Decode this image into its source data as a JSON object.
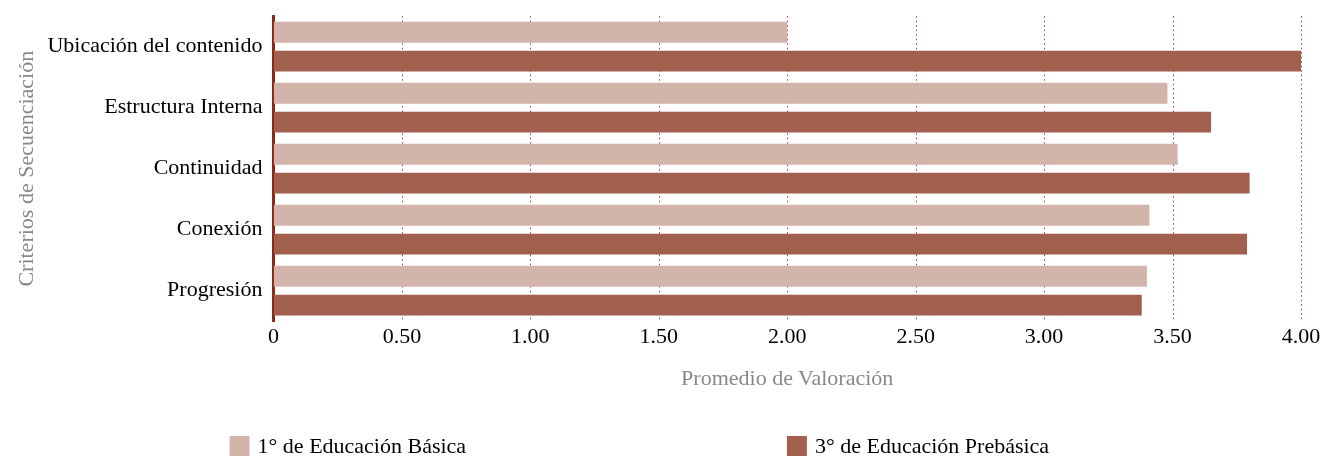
{
  "chart_data": {
    "type": "bar",
    "orientation": "horizontal",
    "ylabel": "Criterios de Secuenciación",
    "xlabel": "Promedio de Valoración",
    "categories": [
      "Ubicación del contenido",
      "Estructura Interna",
      "Continuidad",
      "Conexión",
      "Progresión"
    ],
    "series": [
      {
        "name": "1° de Educación Básica",
        "color": "#d3b4ab",
        "values": [
          2.0,
          3.48,
          3.52,
          3.41,
          3.4
        ]
      },
      {
        "name": "3° de Educación Prebásica",
        "color": "#a0604d",
        "values": [
          4.0,
          3.65,
          3.8,
          3.79,
          3.38
        ]
      }
    ],
    "xlim": [
      0,
      4.0
    ],
    "xticks": [
      0,
      {
        "value": 0.5,
        "label": "0.50"
      },
      {
        "value": 1,
        "label": "1.00"
      },
      {
        "value": 1.5,
        "label": "1.50"
      },
      {
        "value": 2,
        "label": "2.00"
      },
      {
        "value": 2.5,
        "label": "2.50"
      },
      {
        "value": 3,
        "label": "3.00"
      },
      {
        "value": 3.5,
        "label": "3.50"
      },
      {
        "value": 4,
        "label": "4.00"
      }
    ],
    "grid": "x",
    "legend": "bottom"
  }
}
